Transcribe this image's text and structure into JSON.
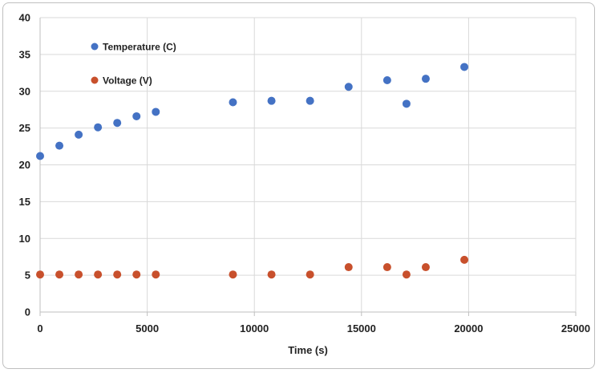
{
  "chart_data": {
    "type": "scatter",
    "title": "",
    "xlabel": "Time (s)",
    "ylabel": "",
    "xlim": [
      0,
      25000
    ],
    "ylim": [
      0,
      40
    ],
    "xticks": [
      0,
      5000,
      10000,
      15000,
      20000,
      25000
    ],
    "yticks": [
      0,
      5,
      10,
      15,
      20,
      25,
      30,
      35,
      40
    ],
    "grid": true,
    "legend_position": "top-left",
    "series": [
      {
        "name": "Temperature (C)",
        "color": "#4472c4",
        "points": [
          [
            0,
            21.2
          ],
          [
            900,
            22.6
          ],
          [
            1800,
            24.1
          ],
          [
            2700,
            25.1
          ],
          [
            3600,
            25.7
          ],
          [
            4500,
            26.6
          ],
          [
            5400,
            27.2
          ],
          [
            9000,
            28.5
          ],
          [
            10800,
            28.7
          ],
          [
            12600,
            28.7
          ],
          [
            14400,
            30.6
          ],
          [
            16200,
            31.5
          ],
          [
            17100,
            28.3
          ],
          [
            18000,
            31.7
          ],
          [
            19800,
            33.3
          ]
        ]
      },
      {
        "name": "Voltage (V)",
        "color": "#c8502c",
        "points": [
          [
            0,
            5.1
          ],
          [
            900,
            5.1
          ],
          [
            1800,
            5.1
          ],
          [
            2700,
            5.1
          ],
          [
            3600,
            5.1
          ],
          [
            4500,
            5.1
          ],
          [
            5400,
            5.1
          ],
          [
            9000,
            5.1
          ],
          [
            10800,
            5.1
          ],
          [
            12600,
            5.1
          ],
          [
            14400,
            6.1
          ],
          [
            16200,
            6.1
          ],
          [
            17100,
            5.1
          ],
          [
            18000,
            6.1
          ],
          [
            19800,
            7.1
          ]
        ]
      }
    ]
  }
}
